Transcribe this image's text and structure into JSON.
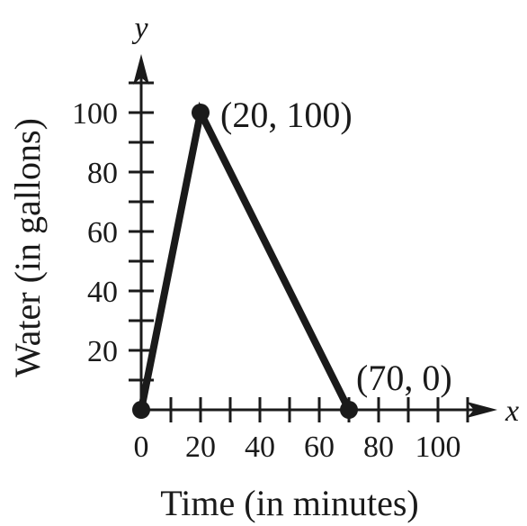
{
  "chart_data": {
    "type": "line",
    "title": "",
    "xlabel": "Time (in minutes)",
    "ylabel": "Water (in gallons)",
    "x_axis_var": "x",
    "y_axis_var": "y",
    "xlim": [
      0,
      110
    ],
    "ylim": [
      0,
      110
    ],
    "x_ticks": [
      0,
      20,
      40,
      60,
      80,
      100
    ],
    "y_ticks": [
      20,
      40,
      60,
      80,
      100
    ],
    "x_minor_step": 10,
    "y_minor_step": 10,
    "grid": false,
    "series": [
      {
        "points": [
          {
            "x": 0,
            "y": 0,
            "label": ""
          },
          {
            "x": 20,
            "y": 100,
            "label": "(20, 100)"
          },
          {
            "x": 70,
            "y": 0,
            "label": "(70, 0)"
          }
        ]
      }
    ],
    "line_color": "#1a1a1a"
  }
}
